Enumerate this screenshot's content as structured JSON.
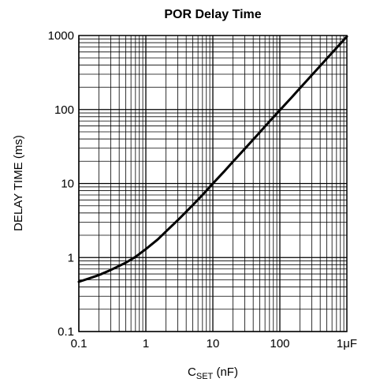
{
  "chart_data": {
    "type": "line",
    "title": "POR Delay Time",
    "xlabel_main": "C",
    "xlabel_sub": "SET",
    "xlabel_unit": " (nF)",
    "ylabel": "DELAY TIME (ms)",
    "x_scale": "log",
    "y_scale": "log",
    "xlim": [
      0.1,
      1000
    ],
    "ylim": [
      0.1,
      1000
    ],
    "grid": true,
    "x_ticks": [
      {
        "value": 0.1,
        "label": "0.1"
      },
      {
        "value": 1,
        "label": "1"
      },
      {
        "value": 10,
        "label": "10"
      },
      {
        "value": 100,
        "label": "100"
      },
      {
        "value": 1000,
        "label": "1μF"
      }
    ],
    "y_ticks": [
      {
        "value": 0.1,
        "label": "0.1"
      },
      {
        "value": 1,
        "label": "1"
      },
      {
        "value": 10,
        "label": "10"
      },
      {
        "value": 100,
        "label": "100"
      },
      {
        "value": 1000,
        "label": "1000"
      }
    ],
    "series": [
      {
        "x": [
          0.1,
          0.15,
          0.2,
          0.3,
          0.5,
          0.7,
          1,
          1.5,
          2,
          3,
          5,
          7,
          10,
          15,
          20,
          30,
          50,
          70,
          100,
          150,
          200,
          300,
          500,
          700,
          1000
        ],
        "y": [
          0.47,
          0.53,
          0.58,
          0.68,
          0.85,
          1.02,
          1.3,
          1.75,
          2.25,
          3.2,
          5.1,
          7.0,
          10,
          14.8,
          19.8,
          29.5,
          49,
          69,
          98,
          146,
          195,
          292,
          486,
          680,
          970
        ]
      }
    ],
    "line_color": "#000000"
  }
}
